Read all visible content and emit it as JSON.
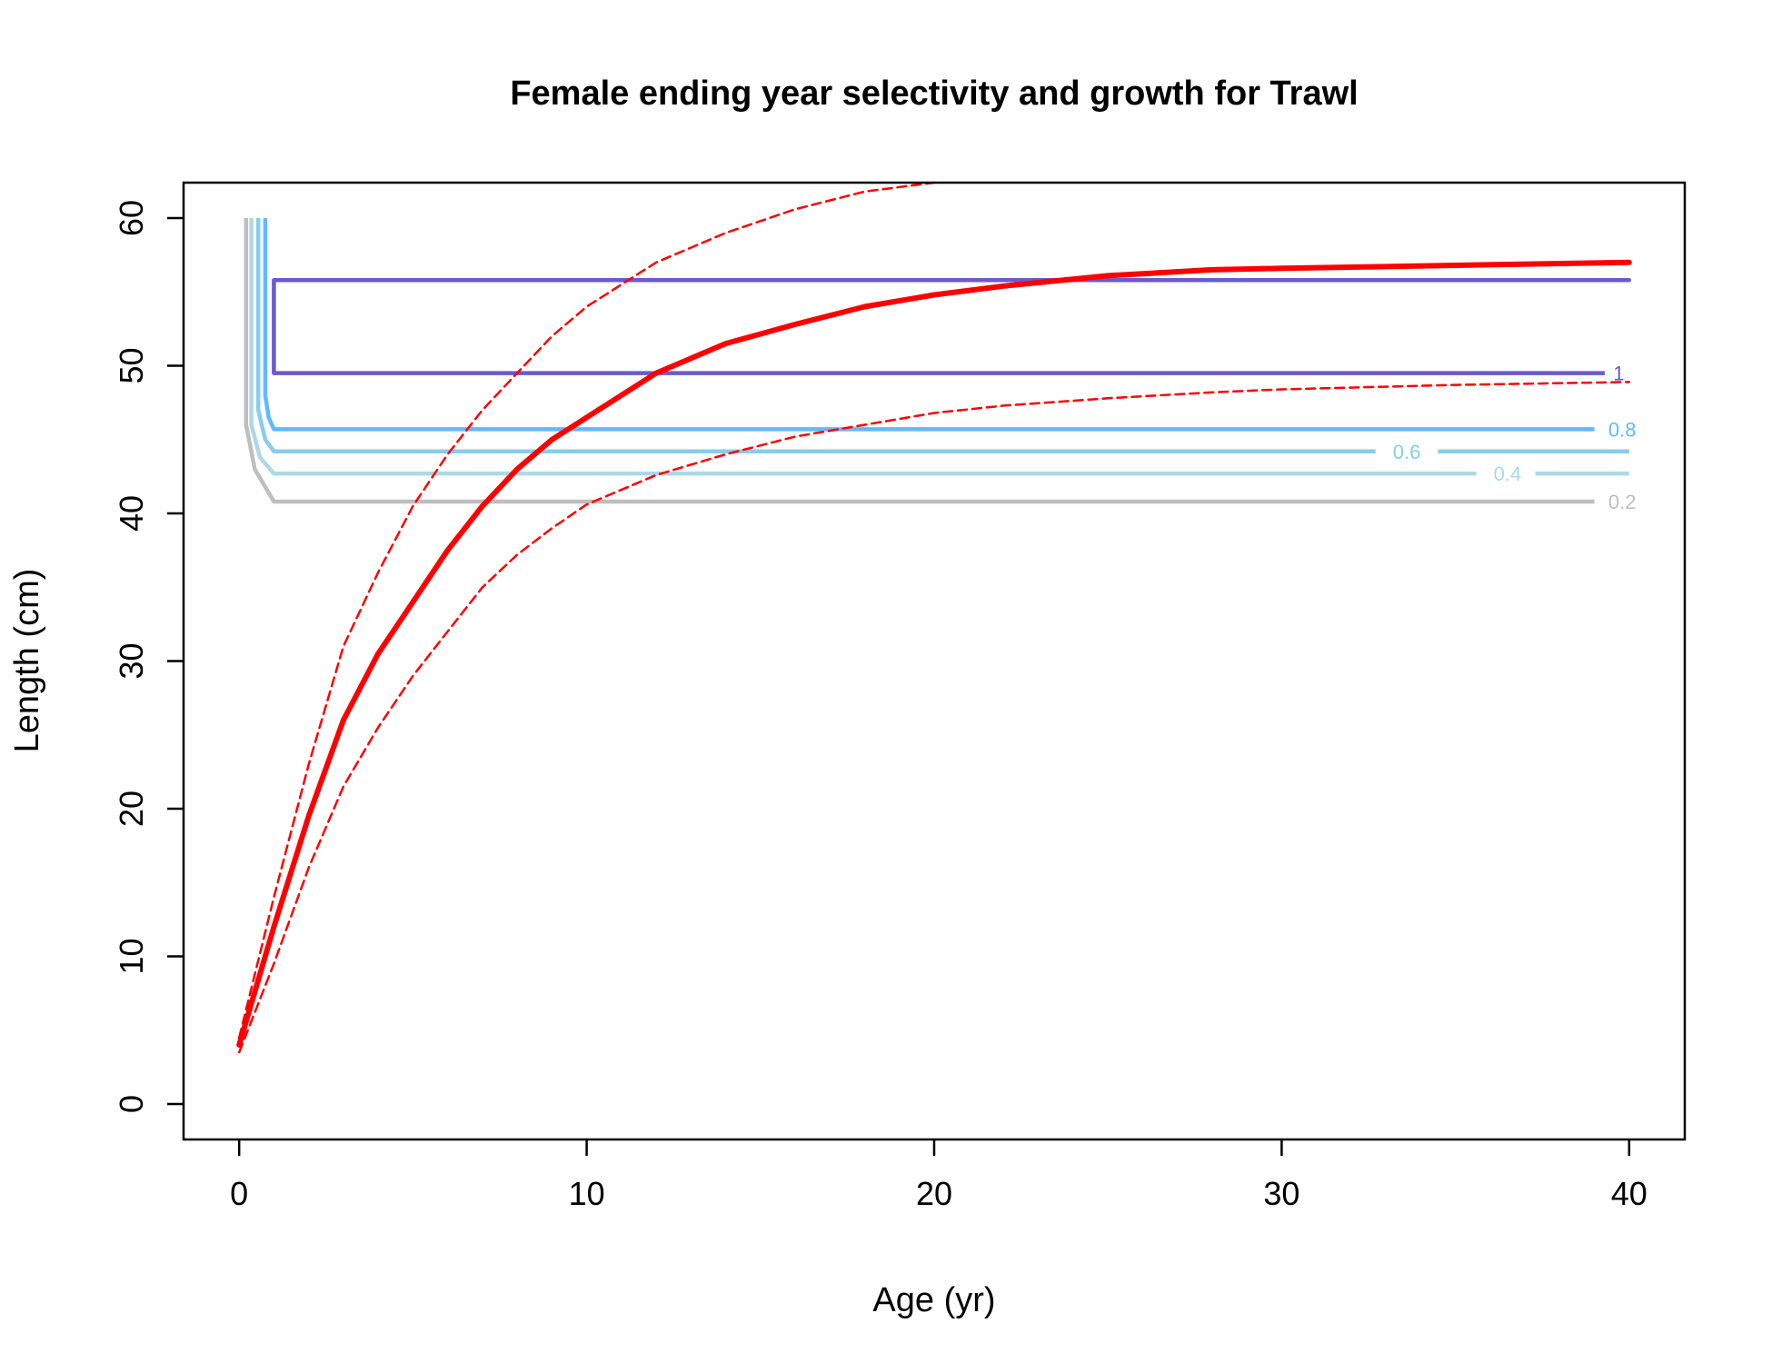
{
  "chart_data": {
    "type": "line",
    "title": "Female ending year selectivity and growth for Trawl",
    "xlabel": "Age (yr)",
    "ylabel": "Length (cm)",
    "xlim": [
      -1.6,
      41.6
    ],
    "ylim": [
      -2.4,
      62.4
    ],
    "xticks": [
      0,
      10,
      20,
      30,
      40
    ],
    "yticks": [
      0,
      10,
      20,
      30,
      40,
      50,
      60
    ],
    "grid": false,
    "legend": "none",
    "series": [
      {
        "role": "growth-mean",
        "color": "#ff0000",
        "style": "solid",
        "x": [
          0,
          1,
          2,
          3,
          4,
          5,
          6,
          7,
          8,
          9,
          10,
          12,
          14,
          16,
          18,
          20,
          22,
          25,
          28,
          30,
          35,
          40
        ],
        "y": [
          4,
          12,
          19.5,
          26,
          30.5,
          34,
          37.5,
          40.5,
          43,
          45,
          46.5,
          49.5,
          51.5,
          52.8,
          54,
          54.8,
          55.4,
          56.1,
          56.5,
          56.6,
          56.8,
          57
        ]
      },
      {
        "role": "growth-upper",
        "color": "#ff0000",
        "style": "dashed",
        "x": [
          0,
          1,
          2,
          3,
          4,
          5,
          6,
          7,
          8,
          9,
          10,
          12,
          14,
          16,
          18,
          20
        ],
        "y": [
          4.5,
          14,
          23,
          31,
          36,
          40.5,
          44,
          47,
          49.5,
          52,
          54,
          57,
          59,
          60.6,
          61.8,
          62.4
        ]
      },
      {
        "role": "growth-lower",
        "color": "#ff0000",
        "style": "dashed",
        "x": [
          0,
          1,
          2,
          3,
          4,
          5,
          6,
          7,
          8,
          9,
          10,
          12,
          14,
          16,
          18,
          20,
          22,
          25,
          28,
          30,
          35,
          40
        ],
        "y": [
          3.5,
          9.5,
          16,
          21.5,
          25.5,
          29,
          32,
          35,
          37.2,
          39,
          40.6,
          42.6,
          44,
          45.2,
          46,
          46.8,
          47.3,
          47.8,
          48.2,
          48.4,
          48.7,
          48.9
        ]
      }
    ],
    "contours": [
      {
        "level": "1",
        "color": "#6a5acd",
        "points": [
          [
            1,
            49.5
          ],
          [
            1,
            55.8
          ],
          [
            40,
            55.8
          ],
          [
            1,
            55.8
          ],
          [
            1,
            49.5
          ],
          [
            39.3,
            49.5
          ]
        ],
        "label_x": 39.7,
        "label_y": 49.5,
        "label_anchor": "middle"
      },
      {
        "level": "0.8",
        "color": "#63b8ff",
        "points": [
          [
            0.75,
            60
          ],
          [
            0.75,
            48
          ],
          [
            0.85,
            46.5
          ],
          [
            1,
            45.7
          ],
          [
            39,
            45.7
          ]
        ],
        "label_x": 39.4,
        "label_y": 45.7,
        "label_anchor": "start"
      },
      {
        "level": "0.6",
        "color": "#87ceeb",
        "points": [
          [
            0.55,
            60
          ],
          [
            0.55,
            47
          ],
          [
            0.75,
            45
          ],
          [
            1,
            44.2
          ],
          [
            32.7,
            44.2
          ]
        ],
        "label_x": 33.6,
        "label_y": 44.2,
        "label_anchor": "middle",
        "tail": [
          [
            34.5,
            44.2
          ],
          [
            40,
            44.2
          ]
        ]
      },
      {
        "level": "0.4",
        "color": "#add8e6",
        "points": [
          [
            0.35,
            60
          ],
          [
            0.35,
            46
          ],
          [
            0.6,
            43.8
          ],
          [
            1,
            42.7
          ],
          [
            35.6,
            42.7
          ]
        ],
        "label_x": 36.5,
        "label_y": 42.7,
        "label_anchor": "middle",
        "tail": [
          [
            37.3,
            42.7
          ],
          [
            40,
            42.7
          ]
        ]
      },
      {
        "level": "0.2",
        "color": "#bebebe",
        "points": [
          [
            0.2,
            60
          ],
          [
            0.2,
            46
          ],
          [
            0.45,
            43
          ],
          [
            1,
            40.8
          ],
          [
            39,
            40.8
          ]
        ],
        "label_x": 39.4,
        "label_y": 40.8,
        "label_anchor": "start"
      }
    ]
  }
}
